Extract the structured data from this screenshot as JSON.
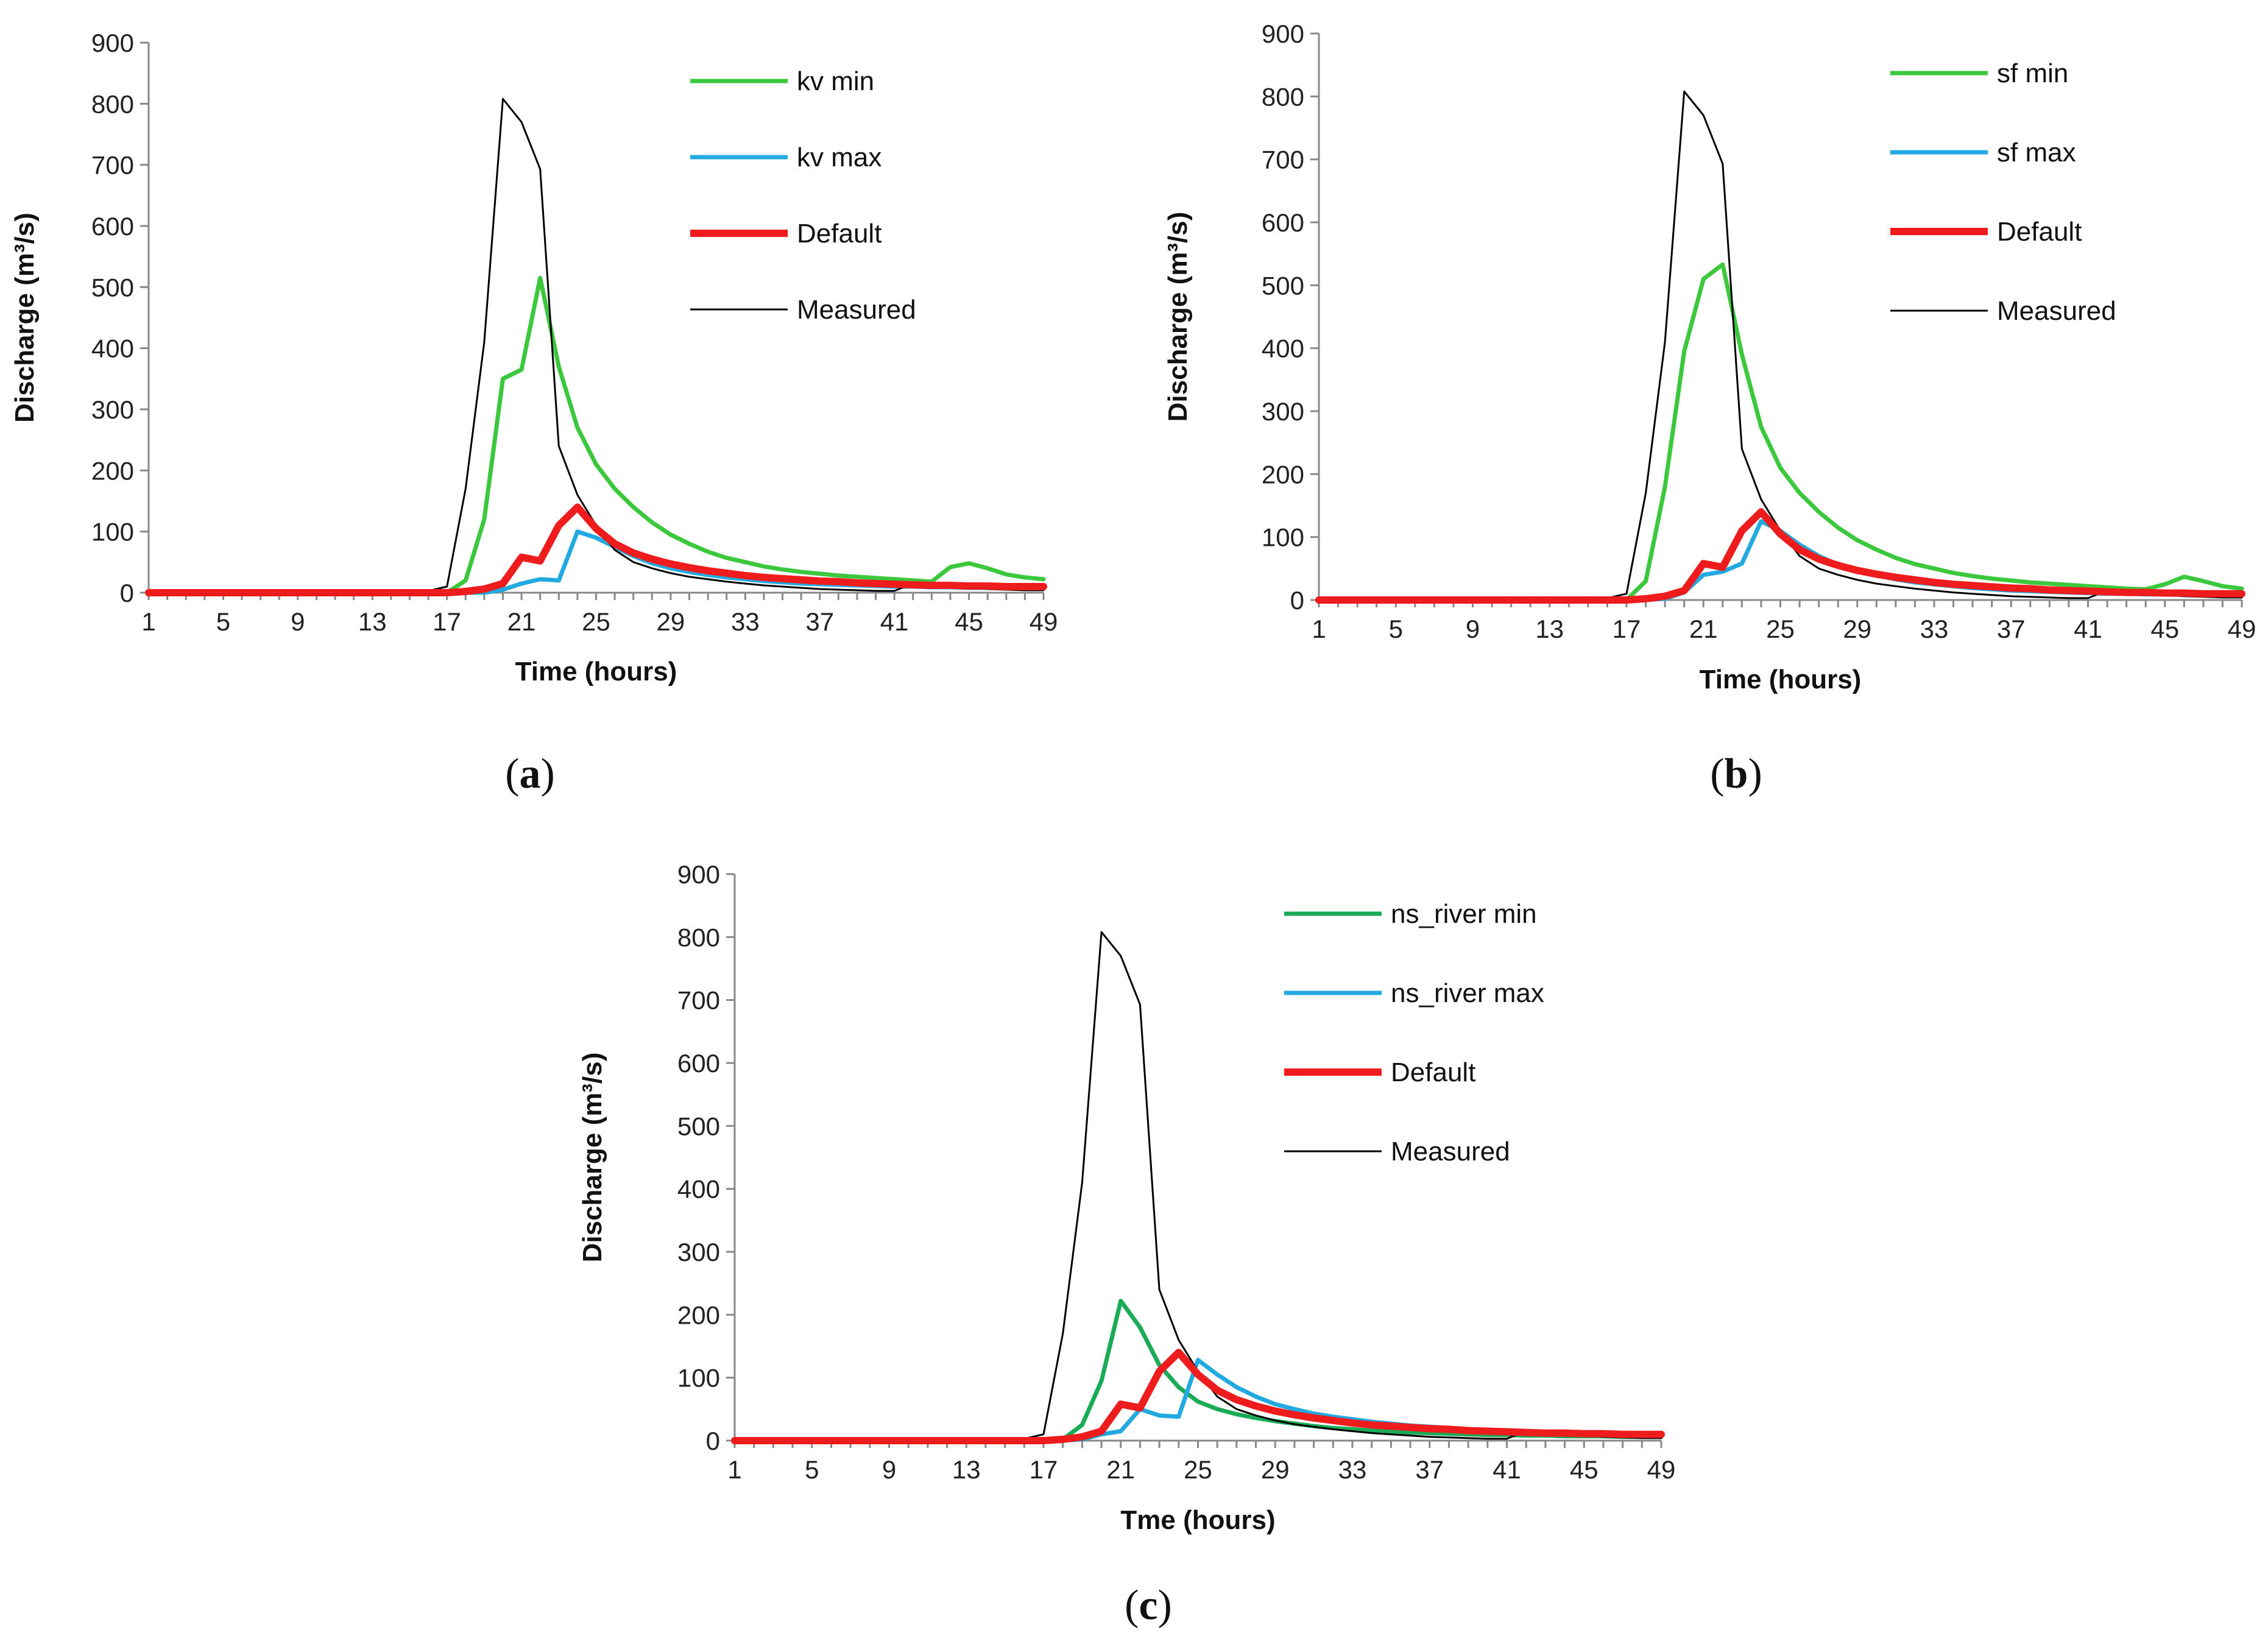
{
  "chart_data": [
    {
      "type": "line",
      "panel_label": "a",
      "title": "",
      "xlabel": "Time (hours)",
      "ylabel": "Discharge (m³/s)",
      "ylim": [
        0,
        900
      ],
      "yticks": [
        0,
        100,
        200,
        300,
        400,
        500,
        600,
        700,
        800,
        900
      ],
      "xticks": [
        1,
        5,
        9,
        13,
        17,
        21,
        25,
        29,
        33,
        37,
        41,
        45,
        49
      ],
      "xlim": [
        1,
        49
      ],
      "legend_position": "top-right",
      "series": [
        {
          "name": "kv min",
          "color": "#3cc83c",
          "width": 7,
          "x_start": 1,
          "values": [
            0,
            0,
            0,
            0,
            0,
            0,
            0,
            0,
            0,
            0,
            0,
            0,
            0,
            0,
            0,
            0,
            0,
            20,
            120,
            350,
            365,
            515,
            370,
            270,
            210,
            170,
            140,
            115,
            95,
            80,
            67,
            57,
            50,
            43,
            38,
            34,
            31,
            28,
            26,
            24,
            22,
            20,
            18,
            42,
            48,
            40,
            30,
            25,
            22
          ]
        },
        {
          "name": "kv max",
          "color": "#21a9e1",
          "width": 7,
          "x_start": 1,
          "values": [
            0,
            0,
            0,
            0,
            0,
            0,
            0,
            0,
            0,
            0,
            0,
            0,
            0,
            0,
            0,
            0,
            0,
            0,
            0,
            5,
            15,
            22,
            20,
            100,
            90,
            75,
            60,
            48,
            40,
            34,
            29,
            25,
            22,
            19,
            17,
            15,
            14,
            13,
            12,
            11,
            10,
            10,
            9,
            9,
            8,
            8,
            8,
            7,
            7
          ]
        },
        {
          "name": "Default",
          "color": "#ee1c1c",
          "width": 12,
          "x_start": 1,
          "values": [
            0,
            0,
            0,
            0,
            0,
            0,
            0,
            0,
            0,
            0,
            0,
            0,
            0,
            0,
            0,
            0,
            0,
            2,
            6,
            15,
            58,
            52,
            110,
            140,
            105,
            80,
            65,
            55,
            47,
            41,
            36,
            32,
            28,
            25,
            23,
            21,
            19,
            18,
            16,
            15,
            14,
            13,
            12,
            12,
            11,
            11,
            10,
            10,
            10
          ]
        },
        {
          "name": "Measured",
          "color": "#000000",
          "width": 3,
          "x_start": 1,
          "values": [
            0,
            0,
            0,
            0,
            0,
            0,
            0,
            0,
            0,
            0,
            0,
            0,
            0,
            0,
            0,
            3,
            10,
            170,
            410,
            808,
            770,
            693,
            240,
            160,
            110,
            70,
            50,
            40,
            32,
            26,
            22,
            18,
            15,
            12,
            10,
            8,
            6,
            5,
            4,
            3,
            3,
            15,
            12,
            10,
            8,
            6,
            5,
            4,
            4
          ]
        }
      ]
    },
    {
      "type": "line",
      "panel_label": "b",
      "title": "",
      "xlabel": "Time (hours)",
      "ylabel": "Discharge (m³/s)",
      "ylim": [
        0,
        900
      ],
      "yticks": [
        0,
        100,
        200,
        300,
        400,
        500,
        600,
        700,
        800,
        900
      ],
      "xticks": [
        1,
        5,
        9,
        13,
        17,
        21,
        25,
        29,
        33,
        37,
        41,
        45,
        49
      ],
      "xlim": [
        1,
        49
      ],
      "legend_position": "top-right",
      "series": [
        {
          "name": "sf min",
          "color": "#3cc83c",
          "width": 7,
          "x_start": 1,
          "values": [
            0,
            0,
            0,
            0,
            0,
            0,
            0,
            0,
            0,
            0,
            0,
            0,
            0,
            0,
            0,
            0,
            0,
            30,
            180,
            395,
            510,
            533,
            390,
            275,
            210,
            170,
            140,
            115,
            95,
            80,
            67,
            57,
            50,
            43,
            38,
            34,
            31,
            28,
            26,
            24,
            22,
            20,
            18,
            17,
            25,
            37,
            30,
            22,
            18
          ]
        },
        {
          "name": "sf max",
          "color": "#21a9e1",
          "width": 7,
          "x_start": 1,
          "values": [
            0,
            0,
            0,
            0,
            0,
            0,
            0,
            0,
            0,
            0,
            0,
            0,
            0,
            0,
            0,
            0,
            0,
            0,
            2,
            12,
            40,
            45,
            58,
            125,
            110,
            88,
            70,
            56,
            46,
            39,
            33,
            28,
            25,
            22,
            19,
            17,
            15,
            14,
            13,
            12,
            11,
            10,
            10,
            9,
            9,
            8,
            8,
            8,
            7
          ]
        },
        {
          "name": "Default",
          "color": "#ee1c1c",
          "width": 12,
          "x_start": 1,
          "values": [
            0,
            0,
            0,
            0,
            0,
            0,
            0,
            0,
            0,
            0,
            0,
            0,
            0,
            0,
            0,
            0,
            0,
            2,
            6,
            15,
            58,
            52,
            110,
            140,
            105,
            80,
            65,
            55,
            47,
            41,
            36,
            32,
            28,
            25,
            23,
            21,
            19,
            18,
            16,
            15,
            14,
            13,
            12,
            12,
            11,
            11,
            10,
            10,
            10
          ]
        },
        {
          "name": "Measured",
          "color": "#000000",
          "width": 3,
          "x_start": 1,
          "values": [
            0,
            0,
            0,
            0,
            0,
            0,
            0,
            0,
            0,
            0,
            0,
            0,
            0,
            0,
            0,
            3,
            10,
            170,
            410,
            808,
            770,
            693,
            240,
            160,
            110,
            70,
            50,
            40,
            32,
            26,
            22,
            18,
            15,
            12,
            10,
            8,
            6,
            5,
            4,
            3,
            3,
            15,
            12,
            10,
            8,
            6,
            5,
            4,
            4
          ]
        }
      ]
    },
    {
      "type": "line",
      "panel_label": "c",
      "title": "",
      "xlabel": "Tme (hours)",
      "ylabel": "Discharge (m³/s)",
      "ylim": [
        0,
        900
      ],
      "yticks": [
        0,
        100,
        200,
        300,
        400,
        500,
        600,
        700,
        800,
        900
      ],
      "xticks": [
        1,
        5,
        9,
        13,
        17,
        21,
        25,
        29,
        33,
        37,
        41,
        45,
        49
      ],
      "xlim": [
        1,
        49
      ],
      "legend_position": "top-right",
      "series": [
        {
          "name": "ns_river min",
          "color": "#1aab56",
          "width": 7,
          "x_start": 1,
          "values": [
            0,
            0,
            0,
            0,
            0,
            0,
            0,
            0,
            0,
            0,
            0,
            0,
            0,
            0,
            0,
            0,
            0,
            2,
            25,
            95,
            222,
            180,
            120,
            85,
            62,
            50,
            42,
            36,
            31,
            27,
            23,
            20,
            18,
            16,
            14,
            13,
            12,
            11,
            10,
            9,
            9,
            8,
            8,
            7,
            7,
            7,
            6,
            6,
            6
          ]
        },
        {
          "name": "ns_river max",
          "color": "#21a9e1",
          "width": 7,
          "x_start": 1,
          "values": [
            0,
            0,
            0,
            0,
            0,
            0,
            0,
            0,
            0,
            0,
            0,
            0,
            0,
            0,
            0,
            0,
            0,
            0,
            2,
            10,
            15,
            50,
            40,
            38,
            128,
            105,
            85,
            70,
            58,
            50,
            43,
            38,
            34,
            30,
            27,
            24,
            22,
            20,
            18,
            16,
            15,
            14,
            13,
            12,
            11,
            10,
            10,
            9,
            9
          ]
        },
        {
          "name": "Default",
          "color": "#ee1c1c",
          "width": 12,
          "x_start": 1,
          "values": [
            0,
            0,
            0,
            0,
            0,
            0,
            0,
            0,
            0,
            0,
            0,
            0,
            0,
            0,
            0,
            0,
            0,
            2,
            6,
            15,
            58,
            52,
            110,
            140,
            105,
            80,
            65,
            55,
            47,
            41,
            36,
            32,
            28,
            25,
            23,
            21,
            19,
            18,
            16,
            15,
            14,
            13,
            12,
            12,
            11,
            11,
            10,
            10,
            10
          ]
        },
        {
          "name": "Measured",
          "color": "#000000",
          "width": 3,
          "x_start": 1,
          "values": [
            0,
            0,
            0,
            0,
            0,
            0,
            0,
            0,
            0,
            0,
            0,
            0,
            0,
            0,
            0,
            3,
            10,
            170,
            410,
            808,
            770,
            693,
            240,
            160,
            110,
            70,
            50,
            40,
            32,
            26,
            22,
            18,
            15,
            12,
            10,
            8,
            6,
            5,
            4,
            3,
            3,
            15,
            12,
            10,
            8,
            6,
            5,
            4,
            4
          ]
        }
      ]
    }
  ]
}
